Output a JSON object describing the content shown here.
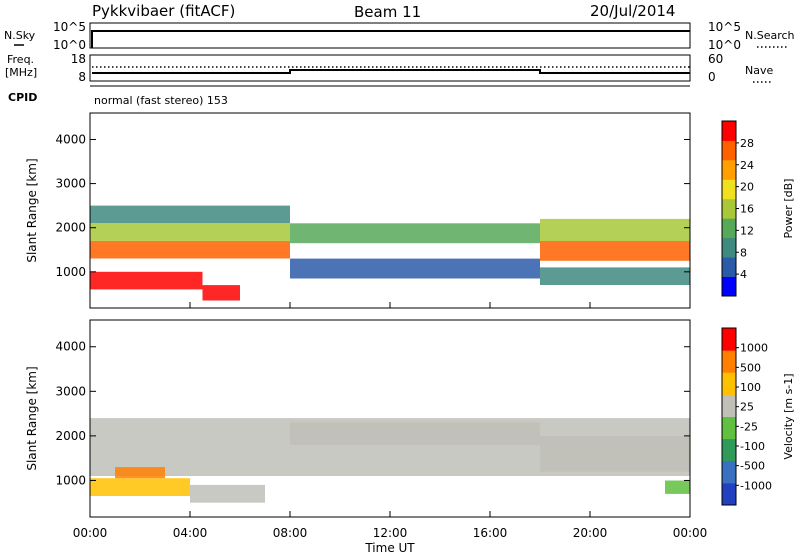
{
  "header": {
    "radar": "Pykkvibaer (fitACF)",
    "beam": "Beam 11",
    "date": "20/Jul/2014"
  },
  "top_panel": {
    "left_label": "N.Sky",
    "right_label": "N.Search",
    "left_ticks": [
      "10^5",
      "10^0"
    ],
    "right_ticks": [
      "10^5",
      "10^0"
    ]
  },
  "freq_panel": {
    "left_label_line1": "Freq.",
    "left_label_line2": "[MHz]",
    "right_label": "Nave",
    "left_ticks": [
      "18",
      "8"
    ],
    "right_ticks": [
      "60",
      "0"
    ]
  },
  "cpid": {
    "label": "CPID",
    "text": "normal (fast stereo) 153"
  },
  "x_axis": {
    "label": "Time UT",
    "ticks": [
      "00:00",
      "04:00",
      "08:00",
      "12:00",
      "16:00",
      "20:00",
      "00:00"
    ]
  },
  "chart_data": [
    {
      "type": "heatmap",
      "name": "power",
      "ylabel": "Slant Range [km]",
      "yticks": [
        1000,
        2000,
        3000,
        4000
      ],
      "ylim": [
        180,
        4600
      ],
      "xlim_hours": [
        0,
        24
      ],
      "colorbar_label": "Power [dB]",
      "colorbar_ticks": [
        "28",
        "24",
        "20",
        "16",
        "12",
        "8",
        "4"
      ],
      "colorbar_colors": [
        "#0000ff",
        "#2b5aa8",
        "#3f8a80",
        "#58a85a",
        "#a8c83a",
        "#f0e020",
        "#ffa000",
        "#ff6000",
        "#ff0000"
      ],
      "bands": [
        {
          "t0": 0.0,
          "t1": 8.0,
          "r0": 1300,
          "r1": 1700,
          "level": 7
        },
        {
          "t0": 0.0,
          "t1": 8.0,
          "r0": 1700,
          "r1": 2100,
          "level": 4
        },
        {
          "t0": 0.0,
          "t1": 8.0,
          "r0": 2100,
          "r1": 2500,
          "level": 2
        },
        {
          "t0": 0.0,
          "t1": 4.5,
          "r0": 600,
          "r1": 1000,
          "level": 8
        },
        {
          "t0": 4.5,
          "t1": 6.0,
          "r0": 350,
          "r1": 700,
          "level": 8
        },
        {
          "t0": 8.0,
          "t1": 18.0,
          "r0": 1650,
          "r1": 2100,
          "level": 3
        },
        {
          "t0": 8.0,
          "t1": 18.0,
          "r0": 850,
          "r1": 1300,
          "level": 1
        },
        {
          "t0": 18.0,
          "t1": 24.0,
          "r0": 1250,
          "r1": 1700,
          "level": 7
        },
        {
          "t0": 18.0,
          "t1": 24.0,
          "r0": 1700,
          "r1": 2200,
          "level": 4
        },
        {
          "t0": 18.0,
          "t1": 24.0,
          "r0": 700,
          "r1": 1100,
          "level": 2
        }
      ]
    },
    {
      "type": "heatmap",
      "name": "velocity",
      "ylabel": "Slant Range [km]",
      "yticks": [
        1000,
        2000,
        3000,
        4000
      ],
      "ylim": [
        180,
        4600
      ],
      "xlim_hours": [
        0,
        24
      ],
      "colorbar_label": "Velocity [m s-1]",
      "colorbar_ticks": [
        "1000",
        "500",
        "100",
        "25",
        "-25",
        "-100",
        "-500",
        "-1000"
      ],
      "colorbar_colors": [
        "#2040c0",
        "#3a70c0",
        "#2f9a5a",
        "#60c040",
        "#c0c0b8",
        "#ffc000",
        "#ff8000",
        "#ff0000"
      ],
      "bands": [
        {
          "t0": 0.0,
          "t1": 24.0,
          "r0": 1100,
          "r1": 2400,
          "level": 4
        },
        {
          "t0": 0.0,
          "t1": 4.0,
          "r0": 650,
          "r1": 1050,
          "level": 5
        },
        {
          "t0": 1.0,
          "t1": 3.0,
          "r0": 1050,
          "r1": 1300,
          "level": 6
        },
        {
          "t0": 4.0,
          "t1": 7.0,
          "r0": 500,
          "r1": 900,
          "level": 4
        },
        {
          "t0": 8.0,
          "t1": 18.0,
          "r0": 1800,
          "r1": 2300,
          "level": 4
        },
        {
          "t0": 18.0,
          "t1": 24.0,
          "r0": 1200,
          "r1": 2000,
          "level": 4
        },
        {
          "t0": 23.0,
          "t1": 24.0,
          "r0": 700,
          "r1": 1000,
          "level": 3
        }
      ]
    }
  ]
}
